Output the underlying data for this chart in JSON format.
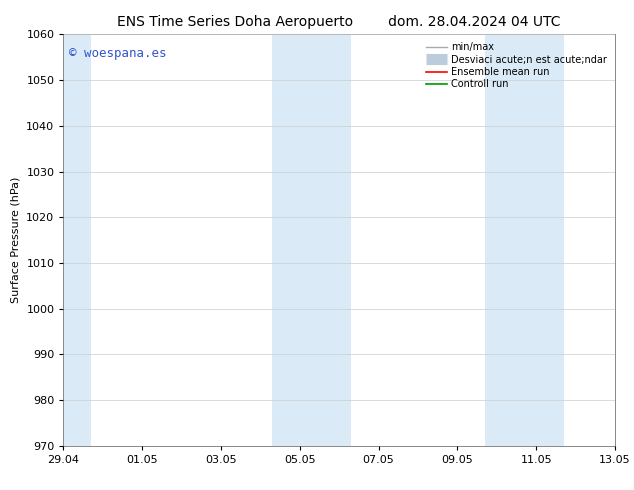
{
  "title_left": "ENS Time Series Doha Aeropuerto",
  "title_right": "dom. 28.04.2024 04 UTC",
  "ylabel": "Surface Pressure (hPa)",
  "ylim": [
    970,
    1060
  ],
  "yticks": [
    970,
    980,
    990,
    1000,
    1010,
    1020,
    1030,
    1040,
    1050,
    1060
  ],
  "xtick_labels": [
    "29.04",
    "01.05",
    "03.05",
    "05.05",
    "07.05",
    "09.05",
    "11.05",
    "13.05"
  ],
  "xtick_positions": [
    0,
    2,
    4,
    6,
    8,
    10,
    12,
    14
  ],
  "xlim": [
    0,
    14
  ],
  "shaded_bands": [
    {
      "x_start": 0.0,
      "x_end": 0.7,
      "color": "#daeaf7"
    },
    {
      "x_start": 5.3,
      "x_end": 7.3,
      "color": "#daeaf7"
    },
    {
      "x_start": 10.7,
      "x_end": 12.7,
      "color": "#daeaf7"
    }
  ],
  "watermark_text": "© woespana.es",
  "watermark_color": "#3355cc",
  "watermark_fontsize": 9,
  "legend_labels": [
    "min/max",
    "Desviaci acute;n est acute;ndar",
    "Ensemble mean run",
    "Controll run"
  ],
  "legend_colors_line": [
    "#aaaaaa",
    "#bbccdd",
    "#ff0000",
    "#009900"
  ],
  "background_color": "#ffffff",
  "plot_bg_color": "#ffffff",
  "grid_color": "#cccccc",
  "title_fontsize": 10,
  "axis_label_fontsize": 8,
  "tick_fontsize": 8,
  "legend_fontsize": 7
}
